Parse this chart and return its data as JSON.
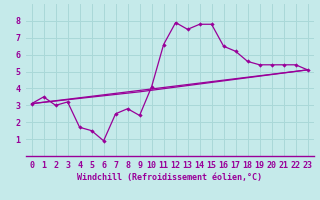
{
  "xlabel": "Windchill (Refroidissement éolien,°C)",
  "bg_color": "#c5eaea",
  "line_color": "#990099",
  "xlim": [
    -0.5,
    23.5
  ],
  "ylim": [
    0,
    9
  ],
  "xticks": [
    0,
    1,
    2,
    3,
    4,
    5,
    6,
    7,
    8,
    9,
    10,
    11,
    12,
    13,
    14,
    15,
    16,
    17,
    18,
    19,
    20,
    21,
    22,
    23
  ],
  "yticks": [
    1,
    2,
    3,
    4,
    5,
    6,
    7,
    8
  ],
  "grid_color": "#aad8d8",
  "series1_x": [
    0,
    1,
    2,
    3,
    4,
    5,
    6,
    7,
    8,
    9,
    10,
    11,
    12,
    13,
    14,
    15,
    16,
    17,
    18,
    19,
    20,
    21,
    22,
    23
  ],
  "series1_y": [
    3.1,
    3.5,
    3.0,
    3.2,
    1.7,
    1.5,
    0.9,
    2.5,
    2.8,
    2.4,
    4.1,
    6.6,
    7.9,
    7.5,
    7.8,
    7.8,
    6.5,
    6.2,
    5.6,
    5.4,
    5.4,
    5.4,
    5.4,
    5.1
  ],
  "series2_x": [
    0,
    23
  ],
  "series2_y": [
    3.1,
    5.1
  ],
  "series3_x": [
    0,
    9,
    23
  ],
  "series3_y": [
    3.1,
    3.8,
    5.1
  ],
  "xlabel_fontsize": 6,
  "tick_fontsize": 6
}
